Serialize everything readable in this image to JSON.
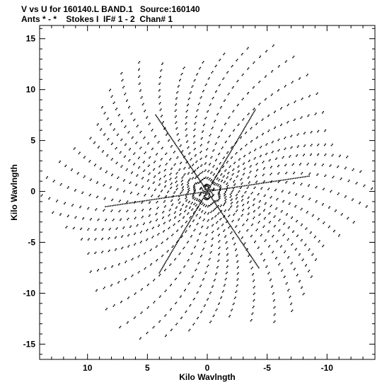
{
  "header": {
    "line1": "V vs U for 160140.L BAND.1   Source:160140",
    "line2": "Ants * - *    Stokes I  IF# 1 - 2  Chan# 1"
  },
  "chart_data": {
    "type": "scatter",
    "title": "V vs U for 160140.L BAND.1   Source:160140",
    "subtitle": "Ants * - *    Stokes I  IF# 1 - 2  Chan# 1",
    "xlabel": "Kilo Wavlngth",
    "ylabel": "Kilo Wavlngth",
    "xlim": [
      14.0,
      -14.0
    ],
    "ylim": [
      -16.5,
      16.3
    ],
    "xticks": [
      10,
      5,
      0,
      -5,
      -10
    ],
    "xtick_labels": [
      "10",
      "5",
      "0",
      "-5",
      "-10"
    ],
    "yticks": [
      15,
      10,
      5,
      0,
      -5,
      -10,
      -15
    ],
    "ytick_labels": [
      "15",
      "10",
      "5",
      "0",
      "-5",
      "-10",
      "-15"
    ],
    "grid": false,
    "marker_color": "#000000",
    "arms": [
      {
        "angle_deg": 85,
        "radius_max": 15.7
      },
      {
        "angle_deg": 35,
        "radius_max": 14.2
      },
      {
        "angle_deg": 152,
        "radius_max": 14.0
      },
      {
        "angle_deg": 265,
        "radius_max": 15.7
      },
      {
        "angle_deg": 215,
        "radius_max": 14.2
      },
      {
        "angle_deg": 332,
        "radius_max": 14.0
      }
    ],
    "dense_baselines": [
      {
        "from": [
          0,
          0
        ],
        "to": [
          -4.0,
          8.0
        ]
      },
      {
        "from": [
          0,
          0
        ],
        "to": [
          4.3,
          7.5
        ]
      },
      {
        "from": [
          0,
          0
        ],
        "to": [
          -8.5,
          1.5
        ]
      },
      {
        "from": [
          0,
          0
        ],
        "to": [
          4.0,
          -8.0
        ]
      },
      {
        "from": [
          0,
          0
        ],
        "to": [
          -4.3,
          -7.5
        ]
      },
      {
        "from": [
          0,
          0
        ],
        "to": [
          8.5,
          -1.5
        ]
      }
    ]
  }
}
